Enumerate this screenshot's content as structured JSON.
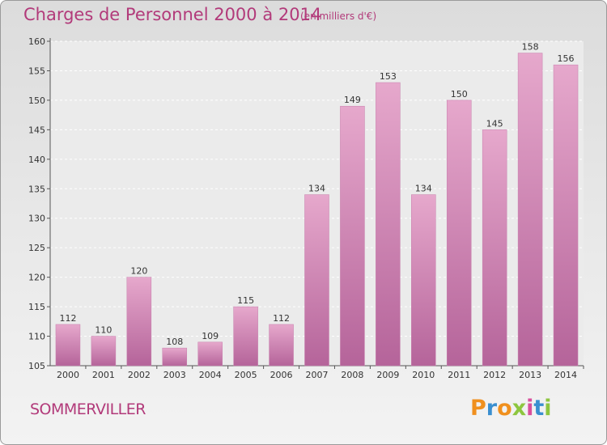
{
  "chart_data": {
    "type": "bar",
    "title": "Charges de Personnel 2000 à 2014",
    "subtitle": "(en milliers d'€)",
    "categories": [
      "2000",
      "2001",
      "2002",
      "2003",
      "2004",
      "2005",
      "2006",
      "2007",
      "2008",
      "2009",
      "2010",
      "2011",
      "2012",
      "2013",
      "2014"
    ],
    "values": [
      112,
      110,
      120,
      108,
      109,
      115,
      112,
      134,
      149,
      153,
      134,
      150,
      145,
      158,
      156
    ],
    "ylim": [
      105,
      160
    ],
    "yticks": [
      105,
      110,
      115,
      120,
      125,
      130,
      135,
      140,
      145,
      150,
      155,
      160
    ],
    "grid": true,
    "bar_color_top": "#e6a8cc",
    "bar_color_bottom": "#b5649a",
    "label_color": "#b23a7a"
  },
  "footer": {
    "commune": "SOMMERVILLER"
  },
  "logo": {
    "text": "Proxiti",
    "letters": [
      "P",
      "r",
      "o",
      "x",
      "i",
      "t",
      "i"
    ],
    "colors": [
      "#f0901e",
      "#3a8fd0",
      "#f0901e",
      "#8dc63f",
      "#d94f9c",
      "#3a8fd0",
      "#8dc63f"
    ]
  }
}
